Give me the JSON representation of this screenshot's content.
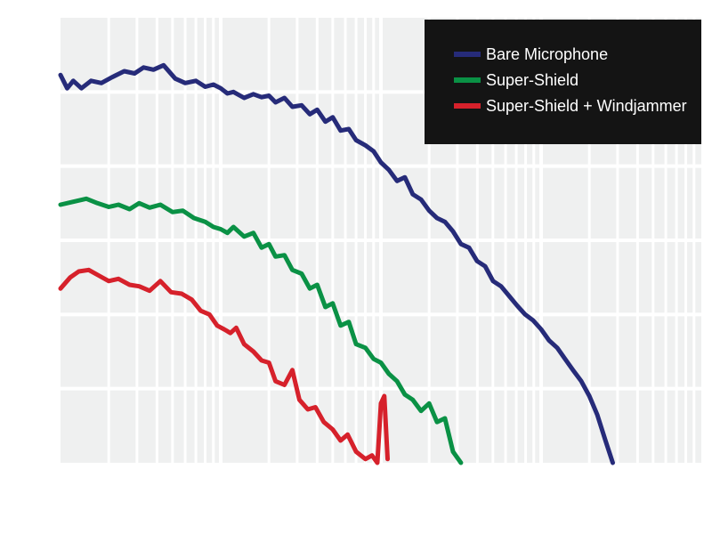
{
  "chart_data": {
    "type": "line",
    "title": "",
    "xlabel": "",
    "ylabel": "",
    "x_scale": "log",
    "xlim": [
      1,
      10000
    ],
    "ylim": [
      0,
      6
    ],
    "grid": true,
    "legend_position": "top-right",
    "colors": {
      "background": "#eff0f0",
      "grid": "#ffffff",
      "legend_bg": "#141414",
      "legend_text": "#ffffff"
    },
    "legend": [
      {
        "label": "Bare Microphone",
        "color": "#262b79"
      },
      {
        "label": "Super-Shield",
        "color": "#0a9145"
      },
      {
        "label": "Super-Shield + Windjammer",
        "color": "#d6212b"
      }
    ],
    "series": [
      {
        "name": "Bare Microphone",
        "color": "#262b79",
        "x": [
          1.0,
          1.1,
          1.2,
          1.35,
          1.55,
          1.8,
          2.1,
          2.5,
          2.9,
          3.3,
          3.8,
          4.4,
          5.2,
          6.0,
          7.0,
          8.0,
          9.0,
          10,
          11,
          12,
          14,
          16,
          18,
          20,
          22,
          25,
          28,
          32,
          36,
          40,
          45,
          50,
          56,
          63,
          70,
          80,
          90,
          100,
          112,
          126,
          141,
          158,
          178,
          200,
          224,
          251,
          282,
          316,
          355,
          398,
          447,
          501,
          562,
          631,
          708,
          794,
          891,
          1000,
          1120,
          1260,
          1410,
          1580,
          1780,
          2000,
          2240,
          2520,
          2800
        ],
        "y": [
          5.23,
          5.05,
          5.15,
          5.05,
          5.15,
          5.12,
          5.2,
          5.28,
          5.25,
          5.33,
          5.3,
          5.36,
          5.18,
          5.12,
          5.15,
          5.07,
          5.1,
          5.05,
          4.98,
          5.0,
          4.92,
          4.97,
          4.93,
          4.95,
          4.86,
          4.92,
          4.8,
          4.82,
          4.7,
          4.76,
          4.6,
          4.66,
          4.48,
          4.5,
          4.35,
          4.28,
          4.2,
          4.05,
          3.95,
          3.8,
          3.85,
          3.62,
          3.55,
          3.4,
          3.3,
          3.25,
          3.12,
          2.95,
          2.9,
          2.72,
          2.65,
          2.45,
          2.38,
          2.25,
          2.12,
          2.0,
          1.92,
          1.8,
          1.65,
          1.55,
          1.4,
          1.25,
          1.1,
          0.9,
          0.65,
          0.3,
          0.0
        ]
      },
      {
        "name": "Super-Shield",
        "color": "#0a9145",
        "x": [
          1.0,
          1.2,
          1.45,
          1.7,
          2.0,
          2.3,
          2.7,
          3.1,
          3.6,
          4.2,
          5.0,
          5.8,
          6.8,
          8.0,
          9.0,
          10,
          11,
          12,
          14,
          16,
          18,
          20,
          22,
          25,
          28,
          32,
          36,
          40,
          45,
          50,
          56,
          63,
          70,
          80,
          90,
          100,
          112,
          126,
          141,
          158,
          178,
          200,
          224,
          251,
          282,
          316
        ],
        "y": [
          3.48,
          3.52,
          3.56,
          3.5,
          3.45,
          3.48,
          3.42,
          3.5,
          3.44,
          3.48,
          3.38,
          3.4,
          3.3,
          3.25,
          3.18,
          3.15,
          3.1,
          3.18,
          3.05,
          3.1,
          2.9,
          2.95,
          2.78,
          2.8,
          2.6,
          2.55,
          2.35,
          2.4,
          2.1,
          2.15,
          1.85,
          1.9,
          1.6,
          1.55,
          1.4,
          1.35,
          1.2,
          1.1,
          0.92,
          0.85,
          0.7,
          0.8,
          0.55,
          0.6,
          0.15,
          0.0
        ]
      },
      {
        "name": "Super-Shield + Windjammer",
        "color": "#d6212b",
        "x": [
          1.0,
          1.15,
          1.3,
          1.5,
          1.75,
          2.0,
          2.3,
          2.7,
          3.1,
          3.6,
          4.2,
          4.9,
          5.7,
          6.6,
          7.5,
          8.5,
          9.5,
          10.5,
          11.5,
          12.5,
          14,
          16,
          18,
          20,
          22,
          25,
          28,
          31,
          35,
          39,
          44,
          50,
          56,
          62,
          70,
          80,
          88,
          95,
          100,
          105,
          110
        ],
        "y": [
          2.35,
          2.5,
          2.58,
          2.6,
          2.52,
          2.45,
          2.48,
          2.4,
          2.38,
          2.32,
          2.45,
          2.3,
          2.28,
          2.2,
          2.05,
          2.0,
          1.85,
          1.8,
          1.75,
          1.82,
          1.6,
          1.5,
          1.38,
          1.35,
          1.1,
          1.05,
          1.25,
          0.85,
          0.72,
          0.75,
          0.55,
          0.45,
          0.3,
          0.38,
          0.15,
          0.05,
          0.1,
          0.0,
          0.8,
          0.9,
          0.05
        ]
      }
    ]
  }
}
